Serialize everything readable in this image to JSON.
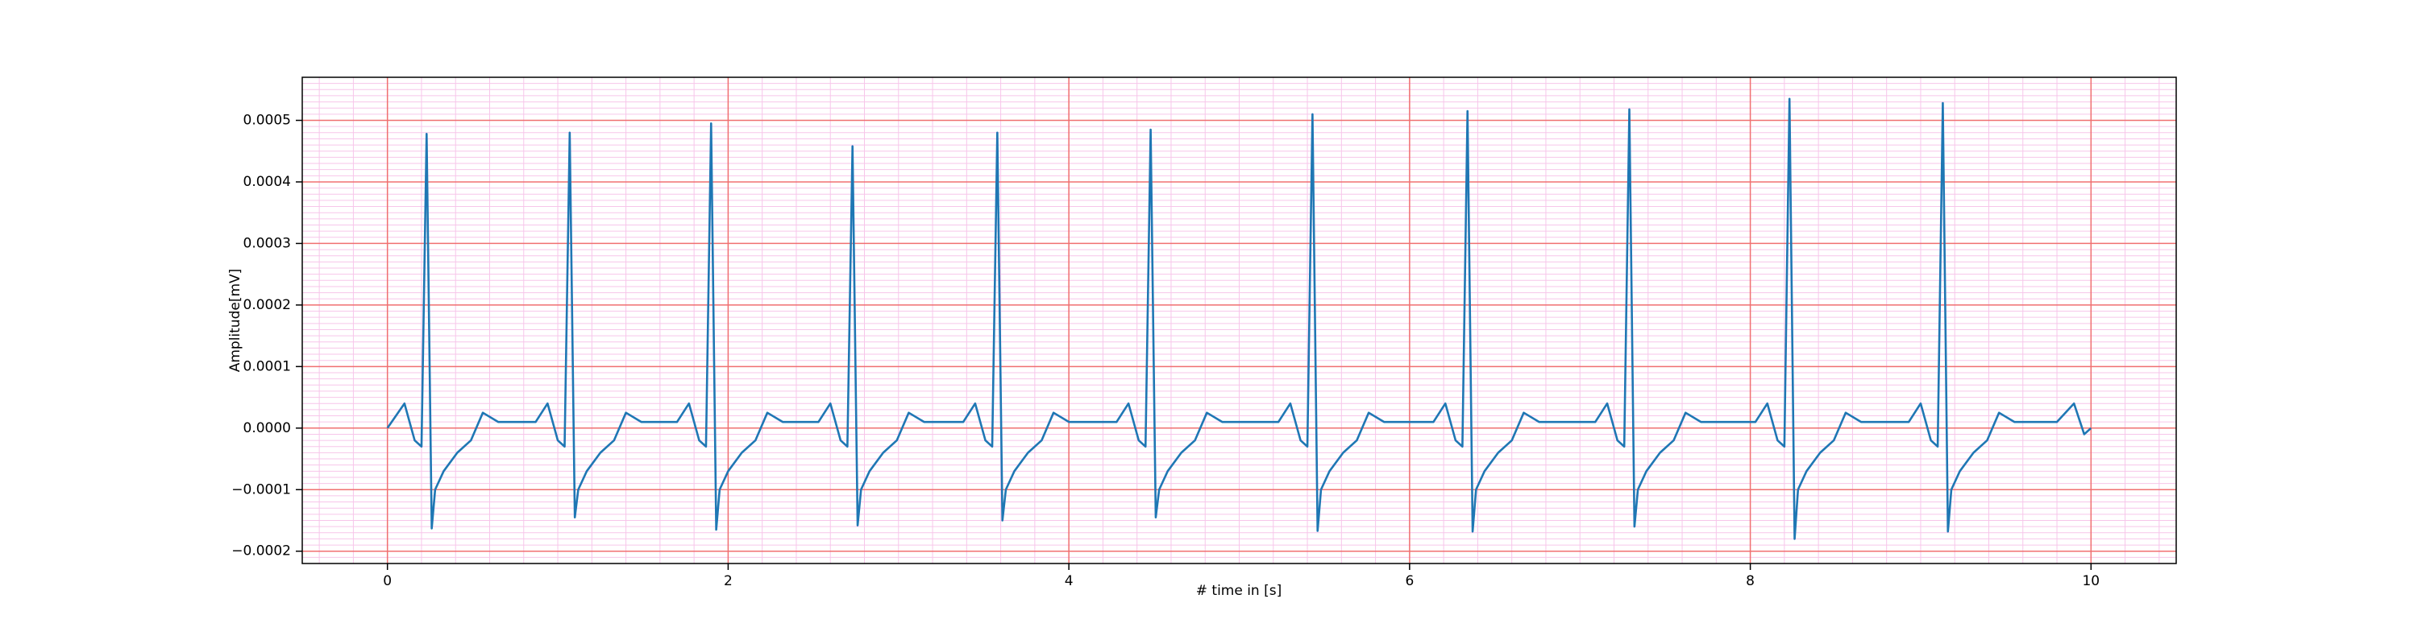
{
  "chart_data": {
    "type": "line",
    "xlabel": "# time in [s]",
    "ylabel": "Amplitude[mV]",
    "color": "#1f77b4",
    "grid": true,
    "minor_grid": true,
    "xlim": [
      -0.5,
      10.5
    ],
    "ylim": [
      -0.00022,
      0.00057
    ],
    "xticks": [
      0,
      2,
      4,
      6,
      8,
      10
    ],
    "yticks": [
      {
        "value": -0.0002,
        "label": "−0.0002"
      },
      {
        "value": -0.0001,
        "label": "−0.0001"
      },
      {
        "value": 0,
        "label": "0.0000"
      },
      {
        "value": 0.0001,
        "label": "0.0001"
      },
      {
        "value": 0.0002,
        "label": "0.0002"
      },
      {
        "value": 0.0003,
        "label": "0.0003"
      },
      {
        "value": 0.0004,
        "label": "0.0004"
      },
      {
        "value": 0.0005,
        "label": "0.0005"
      }
    ],
    "x": [
      0,
      0.1,
      0.16,
      0.2,
      0.23,
      0.26,
      0.28,
      0.33,
      0.41,
      0.49,
      0.56,
      0.65,
      0.78,
      0.87,
      0.94,
      1.0,
      1.04,
      1.07,
      1.1,
      1.12,
      1.17,
      1.25,
      1.33,
      1.4,
      1.49,
      1.62,
      1.7,
      1.77,
      1.83,
      1.87,
      1.9,
      1.93,
      1.95,
      2.0,
      2.08,
      2.16,
      2.23,
      2.32,
      2.45,
      2.53,
      2.6,
      2.66,
      2.7,
      2.73,
      2.76,
      2.78,
      2.83,
      2.91,
      2.99,
      3.06,
      3.15,
      3.28,
      3.38,
      3.45,
      3.51,
      3.55,
      3.58,
      3.61,
      3.63,
      3.68,
      3.76,
      3.84,
      3.91,
      4.0,
      4.13,
      4.28,
      4.35,
      4.41,
      4.45,
      4.48,
      4.51,
      4.53,
      4.58,
      4.66,
      4.74,
      4.81,
      4.9,
      5.03,
      5.23,
      5.3,
      5.36,
      5.4,
      5.43,
      5.46,
      5.48,
      5.53,
      5.61,
      5.69,
      5.76,
      5.85,
      5.98,
      6.14,
      6.21,
      6.27,
      6.31,
      6.34,
      6.37,
      6.39,
      6.44,
      6.52,
      6.6,
      6.67,
      6.76,
      6.89,
      7.09,
      7.16,
      7.22,
      7.26,
      7.29,
      7.32,
      7.34,
      7.39,
      7.47,
      7.55,
      7.62,
      7.71,
      7.84,
      8.03,
      8.1,
      8.16,
      8.2,
      8.23,
      8.26,
      8.28,
      8.33,
      8.41,
      8.49,
      8.56,
      8.65,
      8.78,
      8.93,
      9.0,
      9.06,
      9.1,
      9.13,
      9.16,
      9.18,
      9.23,
      9.31,
      9.39,
      9.46,
      9.55,
      9.68,
      9.8,
      9.9,
      9.96,
      10.0
    ],
    "values": [
      0,
      4e-05,
      -2e-05,
      -3e-05,
      0.000478,
      -0.000163,
      -0.0001,
      -7e-05,
      -4e-05,
      -2e-05,
      2.5e-05,
      1e-05,
      1e-05,
      1e-05,
      4e-05,
      -2e-05,
      -3e-05,
      0.00048,
      -0.000145,
      -0.0001,
      -7e-05,
      -4e-05,
      -2e-05,
      2.5e-05,
      1e-05,
      1e-05,
      1e-05,
      4e-05,
      -2e-05,
      -3e-05,
      0.000495,
      -0.000165,
      -0.0001,
      -7e-05,
      -4e-05,
      -2e-05,
      2.5e-05,
      1e-05,
      1e-05,
      1e-05,
      4e-05,
      -2e-05,
      -3e-05,
      0.000458,
      -0.000158,
      -0.0001,
      -7e-05,
      -4e-05,
      -2e-05,
      2.5e-05,
      1e-05,
      1e-05,
      1e-05,
      4e-05,
      -2e-05,
      -3e-05,
      0.00048,
      -0.00015,
      -0.0001,
      -7e-05,
      -4e-05,
      -2e-05,
      2.5e-05,
      1e-05,
      1e-05,
      1e-05,
      4e-05,
      -2e-05,
      -3e-05,
      0.000485,
      -0.000145,
      -0.0001,
      -7e-05,
      -4e-05,
      -2e-05,
      2.5e-05,
      1e-05,
      1e-05,
      1e-05,
      4e-05,
      -2e-05,
      -3e-05,
      0.00051,
      -0.000167,
      -0.0001,
      -7e-05,
      -4e-05,
      -2e-05,
      2.5e-05,
      1e-05,
      1e-05,
      1e-05,
      4e-05,
      -2e-05,
      -3e-05,
      0.000515,
      -0.000168,
      -0.0001,
      -7e-05,
      -4e-05,
      -2e-05,
      2.5e-05,
      1e-05,
      1e-05,
      1e-05,
      4e-05,
      -2e-05,
      -3e-05,
      0.000518,
      -0.00016,
      -0.0001,
      -7e-05,
      -4e-05,
      -2e-05,
      2.5e-05,
      1e-05,
      1e-05,
      1e-05,
      4e-05,
      -2e-05,
      -3e-05,
      0.000535,
      -0.00018,
      -0.0001,
      -7e-05,
      -4e-05,
      -2e-05,
      2.5e-05,
      1e-05,
      1e-05,
      1e-05,
      4e-05,
      -2e-05,
      -3e-05,
      0.000528,
      -0.000168,
      -0.0001,
      -7e-05,
      -4e-05,
      -2e-05,
      2.5e-05,
      1e-05,
      1e-05,
      1e-05,
      4e-05,
      -1e-05,
      0
    ]
  }
}
